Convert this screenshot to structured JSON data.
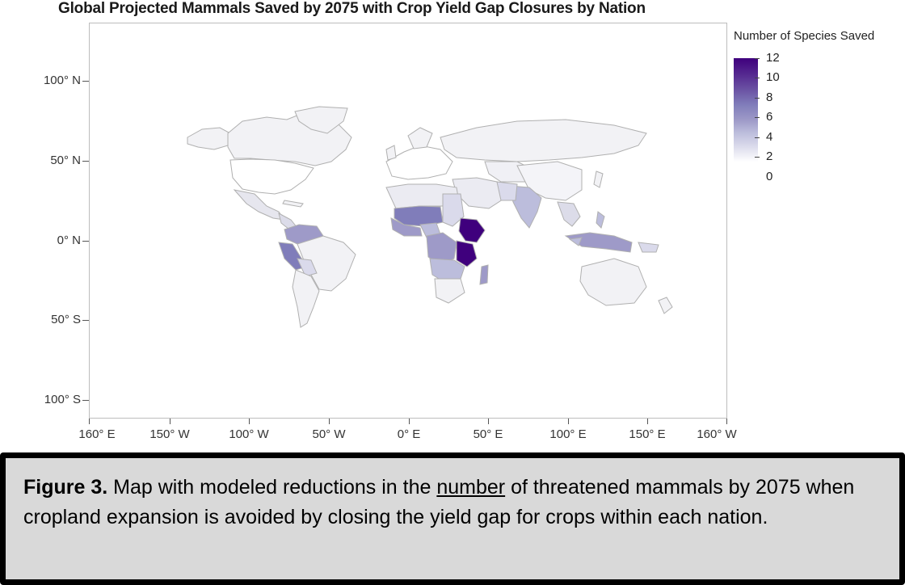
{
  "title": "Global Projected Mammals Saved by 2075 with Crop Yield Gap Closures by Nation",
  "y_axis": {
    "ticks": [
      "100° N",
      "50° N",
      "0° N",
      "50° S",
      "100° S"
    ]
  },
  "x_axis": {
    "ticks": [
      "160° E",
      "150° W",
      "100° W",
      "50° W",
      "0° E",
      "50° E",
      "100° E",
      "150° E",
      "160° W"
    ]
  },
  "legend": {
    "title": "Number of Species Saved",
    "labels": [
      "12",
      "10",
      "8",
      "6",
      "4",
      "2",
      "0"
    ],
    "colors": {
      "max": "#3f007d",
      "mid": "#807dba",
      "min": "#ffffff"
    }
  },
  "caption": {
    "figure_label": "Figure 3.",
    "text_before": " Map with modeled reductions in the ",
    "underlined": "number",
    "text_after": " of threatened mammals by 2075 when cropland expansion is avoided by closing the yield gap for crops within each nation."
  }
}
